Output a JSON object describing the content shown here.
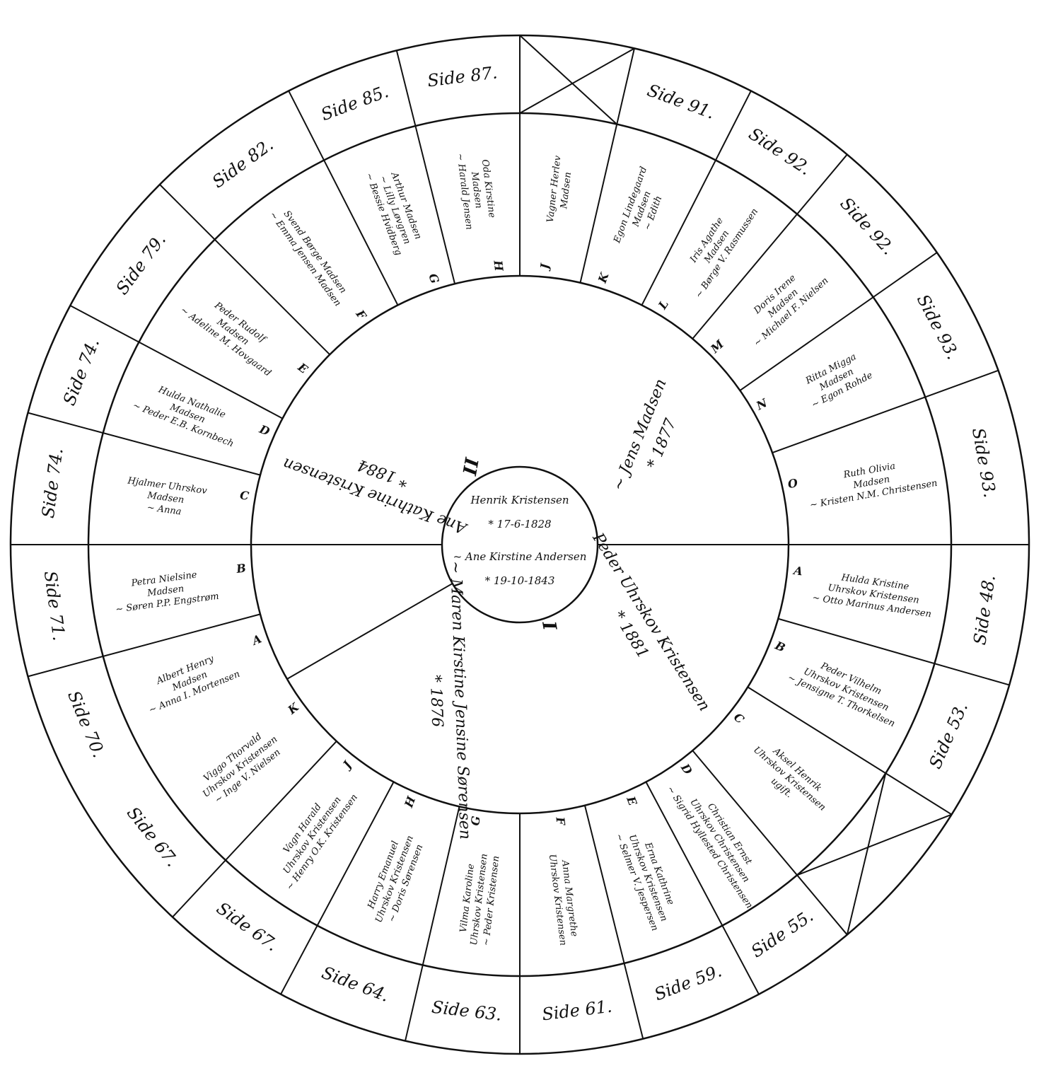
{
  "center": {
    "lines": [
      "Henrik Kristensen",
      "* 17-6-1828",
      "~ Ane Kirstine Andersen",
      "* 19-10-1843"
    ]
  },
  "branches": [
    {
      "numeral": "I",
      "child": [
        "Peder Uhrskov Kristensen",
        "* 1881"
      ],
      "spouse": [
        "~ Maren Kirstine Jensine Sørensen",
        "* 1876"
      ],
      "grandchildren": [
        {
          "letter": "A",
          "lines": [
            "Hulda Kristine",
            "Uhrskov Kristensen",
            "~ Otto Marinus Andersen"
          ],
          "side": "Side 48."
        },
        {
          "letter": "B",
          "lines": [
            "Peder Vilhelm",
            "Uhrskov Kristensen",
            "~ Jensigne T. Thorkelsen"
          ],
          "side": "Side 53."
        },
        {
          "letter": "C",
          "lines": [
            "Aksel Henrik",
            "Uhrskov Kristensen",
            "ugift."
          ]
        },
        {
          "letter": "D",
          "lines": [
            "Christian Ernst",
            "Uhrskov Christensen",
            "~ Sigrid Hyllested Christensen"
          ],
          "side": "Side 55."
        },
        {
          "letter": "E",
          "lines": [
            "Erna Kathrine",
            "Uhrskov Kristensen",
            "~ Selmer V. Jespersen"
          ],
          "side": "Side 59."
        },
        {
          "letter": "F",
          "lines": [
            "Anna Margrethe",
            "Uhrskov Kristensen"
          ],
          "side": "Side 61."
        },
        {
          "letter": "G",
          "lines": [
            "Vilma Karoline",
            "Uhrskov Kristensen",
            "~ Peder Kristensen"
          ],
          "side": "Side 63."
        },
        {
          "letter": "H",
          "lines": [
            "Harry Emanuel",
            "Uhrskov Kristensen",
            "~ Doris Sørensen"
          ],
          "side": "Side 64."
        },
        {
          "letter": "J",
          "lines": [
            "Vagn Harald",
            "Uhrskov Kristensen",
            "~ Henry O.K. Kristensen"
          ],
          "side": "Side 67."
        },
        {
          "letter": "K",
          "lines": [
            "Viggo Thorvald",
            "Uhrskov Kristensen",
            "~ Inge V. Nielsen"
          ],
          "side": "Side 67."
        }
      ]
    },
    {
      "numeral": "II",
      "child": [
        "Ane Kathrine Kristensen",
        "* 1884"
      ],
      "spouse": [
        "~ Jens Madsen",
        "* 1877"
      ],
      "grandchildren": [
        {
          "letter": "A",
          "lines": [
            "Albert Henry",
            "Madsen",
            "~ Anna I. Mortensen"
          ],
          "side": "Side 70."
        },
        {
          "letter": "B",
          "lines": [
            "Petra Nielsine",
            "Madsen",
            "~ Søren P.P. Engstrøm"
          ],
          "side": "Side 71."
        },
        {
          "letter": "C",
          "lines": [
            "Hjalmer Uhrskov",
            "Madsen",
            "~ Anna"
          ],
          "side": "Side 74."
        },
        {
          "letter": "D",
          "lines": [
            "Hulda Nathalie",
            "Madsen",
            "~ Peder E.B. Kornbech"
          ],
          "side": "Side 74."
        },
        {
          "letter": "E",
          "lines": [
            "Peder Rudolf",
            "Madsen",
            "~ Adeline M. Hovgaard"
          ],
          "side": "Side 79."
        },
        {
          "letter": "F",
          "lines": [
            "Svend Børge Madsen",
            "~ Emma Jensen Madsen"
          ],
          "side": "Side 82."
        },
        {
          "letter": "G",
          "lines": [
            "Arthur Madsen",
            "~ Lilly Løvgren",
            "~ Bessie Hvidberg"
          ],
          "side": "Side 85."
        },
        {
          "letter": "H",
          "lines": [
            "Oda Kirstine",
            "Madsen",
            "~ Harald Jensen"
          ],
          "side": "Side 87."
        },
        {
          "letter": "J",
          "lines": [
            "Vagner Herlev",
            "Madsen"
          ]
        },
        {
          "letter": "K",
          "lines": [
            "Egon Lindegaard",
            "Madsen",
            "~ Edith"
          ],
          "side": "Side 91."
        },
        {
          "letter": "L",
          "lines": [
            "Iris Agathe",
            "Madsen",
            "~ Børge V. Rasmussen"
          ],
          "side": "Side 92."
        },
        {
          "letter": "M",
          "lines": [
            "Doris Irene",
            "Madsen",
            "~ Michael F. Nielsen"
          ],
          "side": "Side 92."
        },
        {
          "letter": "N",
          "lines": [
            "Ritta Migga",
            "Madsen",
            "~ Egon Rohde"
          ],
          "side": "Side 93."
        },
        {
          "letter": "O",
          "lines": [
            "Ruth Olivia",
            "Madsen",
            "~ Kristen N.M. Christensen"
          ],
          "side": "Side 93."
        }
      ]
    }
  ]
}
